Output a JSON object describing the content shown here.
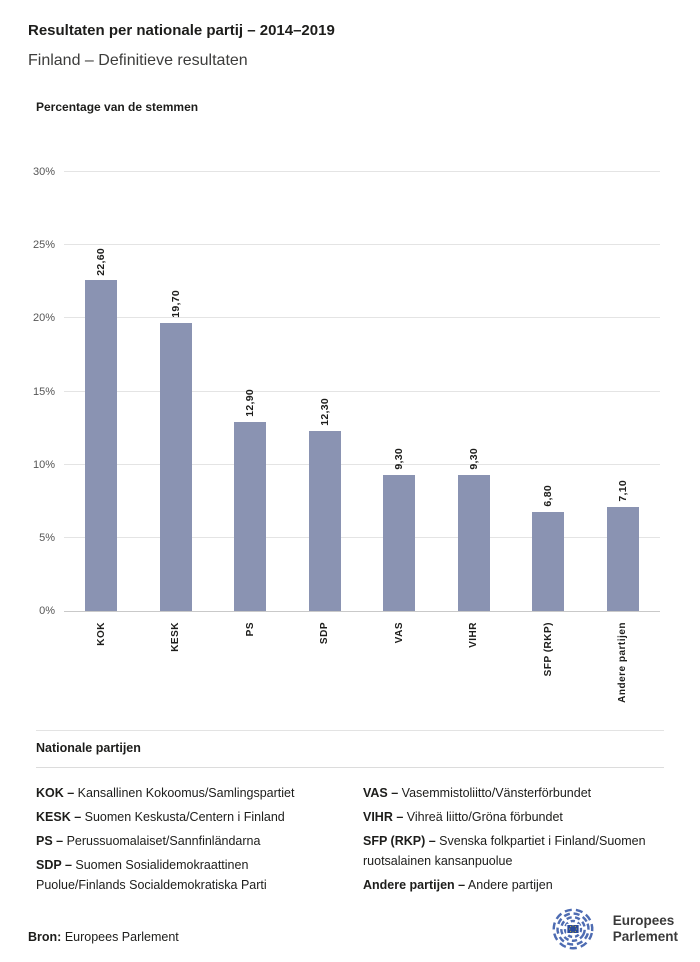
{
  "header": {
    "title": "Resultaten per nationale partij – 2014–2019",
    "subtitle": "Finland – Definitieve resultaten"
  },
  "chart_data": {
    "type": "bar",
    "title": "Percentage van de stemmen",
    "categories": [
      "KOK",
      "KESK",
      "PS",
      "SDP",
      "VAS",
      "VIHR",
      "SFP (RKP)",
      "Andere partijen"
    ],
    "values": [
      22.6,
      19.7,
      12.9,
      12.3,
      9.3,
      9.3,
      6.8,
      7.1
    ],
    "value_labels": [
      "22,60",
      "19,70",
      "12,90",
      "12,30",
      "9,30",
      "9,30",
      "6,80",
      "7,10"
    ],
    "xlabel": "",
    "ylabel": "Percentage van de stemmen",
    "ylim": [
      0,
      30
    ],
    "ytick_step": 5,
    "ytick_labels": [
      "0%",
      "5%",
      "10%",
      "15%",
      "20%",
      "25%",
      "30%"
    ],
    "grid": true,
    "legend_position": "none",
    "bar_color": "#8A93B2"
  },
  "legend": {
    "heading": "Nationale partijen",
    "columns": [
      [
        {
          "abbr": "KOK –",
          "name": "Kansallinen Kokoomus/Samlingspartiet"
        },
        {
          "abbr": "KESK –",
          "name": "Suomen Keskusta/Centern i Finland"
        },
        {
          "abbr": "PS –",
          "name": "Perussuomalaiset/Sannfinländarna"
        },
        {
          "abbr": "SDP –",
          "name": "Suomen Sosialidemokraattinen Puolue/Finlands Socialdemokratiska Parti"
        }
      ],
      [
        {
          "abbr": "VAS –",
          "name": "Vasemmistoliitto/Vänsterförbundet"
        },
        {
          "abbr": "VIHR –",
          "name": "Vihreä liitto/Gröna förbundet"
        },
        {
          "abbr": "SFP (RKP) –",
          "name": "Svenska folkpartiet i Finland/Suomen ruotsalainen kansanpuolue"
        },
        {
          "abbr": "Andere partijen –",
          "name": "Andere partijen"
        }
      ]
    ]
  },
  "footer": {
    "source_label": "Bron:",
    "source": "Europees Parlement",
    "logo_line1": "Europees",
    "logo_line2": "Parlement"
  },
  "colors": {
    "bar": "#8A93B2",
    "grid": "#E4E4E4",
    "axis": "#C9C9C9",
    "text_dark": "#1D1D1B",
    "text_muted": "#3C3C3B",
    "logo_blue": "#4E6CB2",
    "flag_blue": "#2A4B9B",
    "star_yellow": "#F7D117"
  }
}
